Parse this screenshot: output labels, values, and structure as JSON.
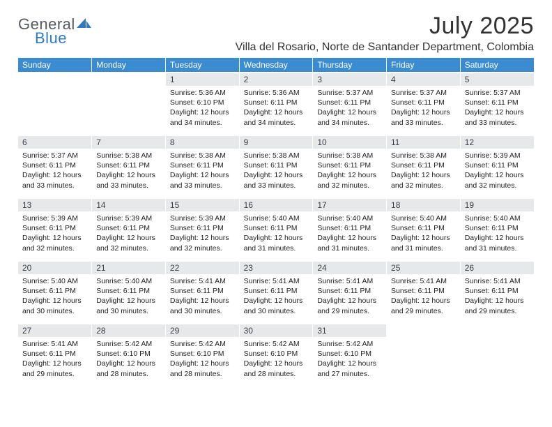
{
  "brand": {
    "word1": "General",
    "word2": "Blue"
  },
  "title": "July 2025",
  "location": "Villa del Rosario, Norte de Santander Department, Colombia",
  "colors": {
    "header_bg": "#3b8bd0",
    "header_fg": "#ffffff",
    "daynum_bg": "#e7e8ea",
    "logo_gray": "#555a60",
    "logo_blue": "#2f79c2"
  },
  "weekdays": [
    "Sunday",
    "Monday",
    "Tuesday",
    "Wednesday",
    "Thursday",
    "Friday",
    "Saturday"
  ],
  "weeks": [
    [
      {
        "n": "",
        "sr": "",
        "ss": "",
        "dl": ""
      },
      {
        "n": "",
        "sr": "",
        "ss": "",
        "dl": ""
      },
      {
        "n": "1",
        "sr": "Sunrise: 5:36 AM",
        "ss": "Sunset: 6:10 PM",
        "dl": "Daylight: 12 hours and 34 minutes."
      },
      {
        "n": "2",
        "sr": "Sunrise: 5:36 AM",
        "ss": "Sunset: 6:11 PM",
        "dl": "Daylight: 12 hours and 34 minutes."
      },
      {
        "n": "3",
        "sr": "Sunrise: 5:37 AM",
        "ss": "Sunset: 6:11 PM",
        "dl": "Daylight: 12 hours and 34 minutes."
      },
      {
        "n": "4",
        "sr": "Sunrise: 5:37 AM",
        "ss": "Sunset: 6:11 PM",
        "dl": "Daylight: 12 hours and 33 minutes."
      },
      {
        "n": "5",
        "sr": "Sunrise: 5:37 AM",
        "ss": "Sunset: 6:11 PM",
        "dl": "Daylight: 12 hours and 33 minutes."
      }
    ],
    [
      {
        "n": "6",
        "sr": "Sunrise: 5:37 AM",
        "ss": "Sunset: 6:11 PM",
        "dl": "Daylight: 12 hours and 33 minutes."
      },
      {
        "n": "7",
        "sr": "Sunrise: 5:38 AM",
        "ss": "Sunset: 6:11 PM",
        "dl": "Daylight: 12 hours and 33 minutes."
      },
      {
        "n": "8",
        "sr": "Sunrise: 5:38 AM",
        "ss": "Sunset: 6:11 PM",
        "dl": "Daylight: 12 hours and 33 minutes."
      },
      {
        "n": "9",
        "sr": "Sunrise: 5:38 AM",
        "ss": "Sunset: 6:11 PM",
        "dl": "Daylight: 12 hours and 33 minutes."
      },
      {
        "n": "10",
        "sr": "Sunrise: 5:38 AM",
        "ss": "Sunset: 6:11 PM",
        "dl": "Daylight: 12 hours and 32 minutes."
      },
      {
        "n": "11",
        "sr": "Sunrise: 5:38 AM",
        "ss": "Sunset: 6:11 PM",
        "dl": "Daylight: 12 hours and 32 minutes."
      },
      {
        "n": "12",
        "sr": "Sunrise: 5:39 AM",
        "ss": "Sunset: 6:11 PM",
        "dl": "Daylight: 12 hours and 32 minutes."
      }
    ],
    [
      {
        "n": "13",
        "sr": "Sunrise: 5:39 AM",
        "ss": "Sunset: 6:11 PM",
        "dl": "Daylight: 12 hours and 32 minutes."
      },
      {
        "n": "14",
        "sr": "Sunrise: 5:39 AM",
        "ss": "Sunset: 6:11 PM",
        "dl": "Daylight: 12 hours and 32 minutes."
      },
      {
        "n": "15",
        "sr": "Sunrise: 5:39 AM",
        "ss": "Sunset: 6:11 PM",
        "dl": "Daylight: 12 hours and 32 minutes."
      },
      {
        "n": "16",
        "sr": "Sunrise: 5:40 AM",
        "ss": "Sunset: 6:11 PM",
        "dl": "Daylight: 12 hours and 31 minutes."
      },
      {
        "n": "17",
        "sr": "Sunrise: 5:40 AM",
        "ss": "Sunset: 6:11 PM",
        "dl": "Daylight: 12 hours and 31 minutes."
      },
      {
        "n": "18",
        "sr": "Sunrise: 5:40 AM",
        "ss": "Sunset: 6:11 PM",
        "dl": "Daylight: 12 hours and 31 minutes."
      },
      {
        "n": "19",
        "sr": "Sunrise: 5:40 AM",
        "ss": "Sunset: 6:11 PM",
        "dl": "Daylight: 12 hours and 31 minutes."
      }
    ],
    [
      {
        "n": "20",
        "sr": "Sunrise: 5:40 AM",
        "ss": "Sunset: 6:11 PM",
        "dl": "Daylight: 12 hours and 30 minutes."
      },
      {
        "n": "21",
        "sr": "Sunrise: 5:40 AM",
        "ss": "Sunset: 6:11 PM",
        "dl": "Daylight: 12 hours and 30 minutes."
      },
      {
        "n": "22",
        "sr": "Sunrise: 5:41 AM",
        "ss": "Sunset: 6:11 PM",
        "dl": "Daylight: 12 hours and 30 minutes."
      },
      {
        "n": "23",
        "sr": "Sunrise: 5:41 AM",
        "ss": "Sunset: 6:11 PM",
        "dl": "Daylight: 12 hours and 30 minutes."
      },
      {
        "n": "24",
        "sr": "Sunrise: 5:41 AM",
        "ss": "Sunset: 6:11 PM",
        "dl": "Daylight: 12 hours and 29 minutes."
      },
      {
        "n": "25",
        "sr": "Sunrise: 5:41 AM",
        "ss": "Sunset: 6:11 PM",
        "dl": "Daylight: 12 hours and 29 minutes."
      },
      {
        "n": "26",
        "sr": "Sunrise: 5:41 AM",
        "ss": "Sunset: 6:11 PM",
        "dl": "Daylight: 12 hours and 29 minutes."
      }
    ],
    [
      {
        "n": "27",
        "sr": "Sunrise: 5:41 AM",
        "ss": "Sunset: 6:11 PM",
        "dl": "Daylight: 12 hours and 29 minutes."
      },
      {
        "n": "28",
        "sr": "Sunrise: 5:42 AM",
        "ss": "Sunset: 6:10 PM",
        "dl": "Daylight: 12 hours and 28 minutes."
      },
      {
        "n": "29",
        "sr": "Sunrise: 5:42 AM",
        "ss": "Sunset: 6:10 PM",
        "dl": "Daylight: 12 hours and 28 minutes."
      },
      {
        "n": "30",
        "sr": "Sunrise: 5:42 AM",
        "ss": "Sunset: 6:10 PM",
        "dl": "Daylight: 12 hours and 28 minutes."
      },
      {
        "n": "31",
        "sr": "Sunrise: 5:42 AM",
        "ss": "Sunset: 6:10 PM",
        "dl": "Daylight: 12 hours and 27 minutes."
      },
      {
        "n": "",
        "sr": "",
        "ss": "",
        "dl": ""
      },
      {
        "n": "",
        "sr": "",
        "ss": "",
        "dl": ""
      }
    ]
  ]
}
